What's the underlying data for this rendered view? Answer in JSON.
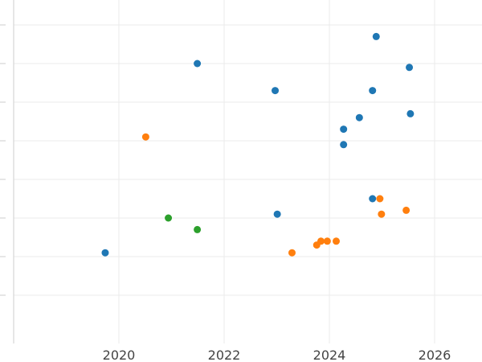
{
  "chart_data": {
    "type": "scatter",
    "title": "",
    "xlabel": "",
    "ylabel": "",
    "x_ticks": [
      "2020",
      "2022",
      "2024",
      "2026"
    ],
    "grid": true,
    "legend": "none",
    "series": [
      {
        "color": "#1f77b4",
        "points": [
          {
            "x": 2019.74,
            "y": 1.1
          },
          {
            "x": 2021.49,
            "y": 6.0
          },
          {
            "x": 2022.97,
            "y": 5.3
          },
          {
            "x": 2023.01,
            "y": 2.1
          },
          {
            "x": 2024.27,
            "y": 4.3
          },
          {
            "x": 2024.27,
            "y": 3.9
          },
          {
            "x": 2024.57,
            "y": 4.6
          },
          {
            "x": 2024.82,
            "y": 5.3
          },
          {
            "x": 2024.82,
            "y": 2.5
          },
          {
            "x": 2024.89,
            "y": 6.7
          },
          {
            "x": 2025.52,
            "y": 5.9
          },
          {
            "x": 2025.54,
            "y": 4.7
          }
        ]
      },
      {
        "color": "#ff7f0e",
        "points": [
          {
            "x": 2020.51,
            "y": 4.1
          },
          {
            "x": 2023.29,
            "y": 1.1
          },
          {
            "x": 2023.76,
            "y": 1.3
          },
          {
            "x": 2023.84,
            "y": 1.4
          },
          {
            "x": 2023.96,
            "y": 1.4
          },
          {
            "x": 2024.13,
            "y": 1.4
          },
          {
            "x": 2024.96,
            "y": 2.5
          },
          {
            "x": 2024.99,
            "y": 2.1
          },
          {
            "x": 2025.46,
            "y": 2.2
          }
        ]
      },
      {
        "color": "#2ca02c",
        "points": [
          {
            "x": 2020.94,
            "y": 2.0
          },
          {
            "x": 2021.49,
            "y": 1.7
          }
        ]
      }
    ]
  }
}
